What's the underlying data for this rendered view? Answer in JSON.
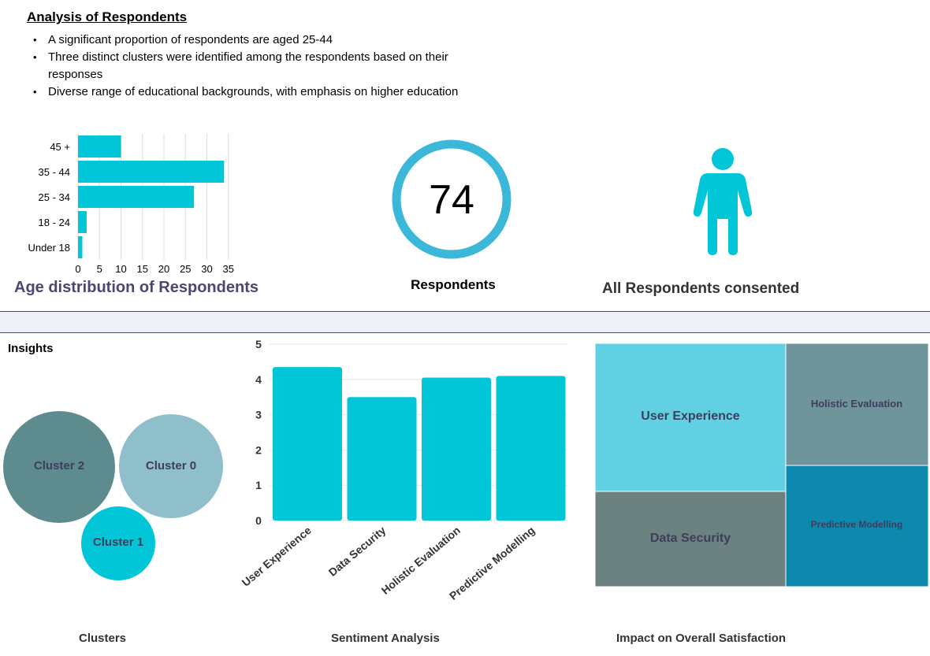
{
  "heading": "Analysis of Respondents",
  "bullets": [
    "A significant proportion of respondents are aged 25-44",
    "Three distinct clusters were identified among the respondents based on their responses",
    "Diverse range of educational backgrounds, with emphasis on higher education"
  ],
  "respondents": {
    "count": "74",
    "label": "Respondents"
  },
  "consent": {
    "label": "All Respondents consented",
    "icon": "person-icon"
  },
  "insights_label": "Insights",
  "colors": {
    "cyan": "#00c6d7",
    "ring": "#3bb8d9",
    "title_purple": "#4a4870"
  },
  "chart_data": [
    {
      "id": "age",
      "type": "bar",
      "orientation": "horizontal",
      "title": "Age distribution of Respondents",
      "categories": [
        "45 +",
        "35 - 44",
        "25 - 34",
        "18 - 24",
        "Under 18"
      ],
      "values": [
        10,
        34,
        27,
        2,
        1
      ],
      "xticks": [
        "0",
        "5",
        "10",
        "15",
        "20",
        "25",
        "30",
        "35"
      ],
      "xlim": [
        0,
        35
      ],
      "grid": true
    },
    {
      "id": "clusters",
      "type": "bubble",
      "title": "Clusters",
      "bubbles": [
        {
          "label": "Cluster 2",
          "color": "#5e8b8e"
        },
        {
          "label": "Cluster 0",
          "color": "#8fbfca"
        },
        {
          "label": "Cluster 1",
          "color": "#00c6d7"
        }
      ]
    },
    {
      "id": "sentiment",
      "type": "bar",
      "title": "Sentiment Analysis",
      "categories": [
        "User Experience",
        "Data Security",
        "Holistic Evaluation",
        "Predictive Modelling"
      ],
      "values": [
        4.35,
        3.5,
        4.05,
        4.1
      ],
      "yticks": [
        "0",
        "1",
        "2",
        "3",
        "4",
        "5"
      ],
      "ylim": [
        0,
        5
      ],
      "grid": true
    },
    {
      "id": "impact",
      "type": "treemap",
      "title": "Impact on Overall Satisfaction",
      "cells": [
        {
          "label": "User Experience",
          "color": "#62d0e3"
        },
        {
          "label": "Holistic Evaluation",
          "color": "#6d959b"
        },
        {
          "label": "Data Security",
          "color": "#6b8281"
        },
        {
          "label": "Predictive Modelling",
          "color": "#0e89ad"
        }
      ]
    }
  ]
}
